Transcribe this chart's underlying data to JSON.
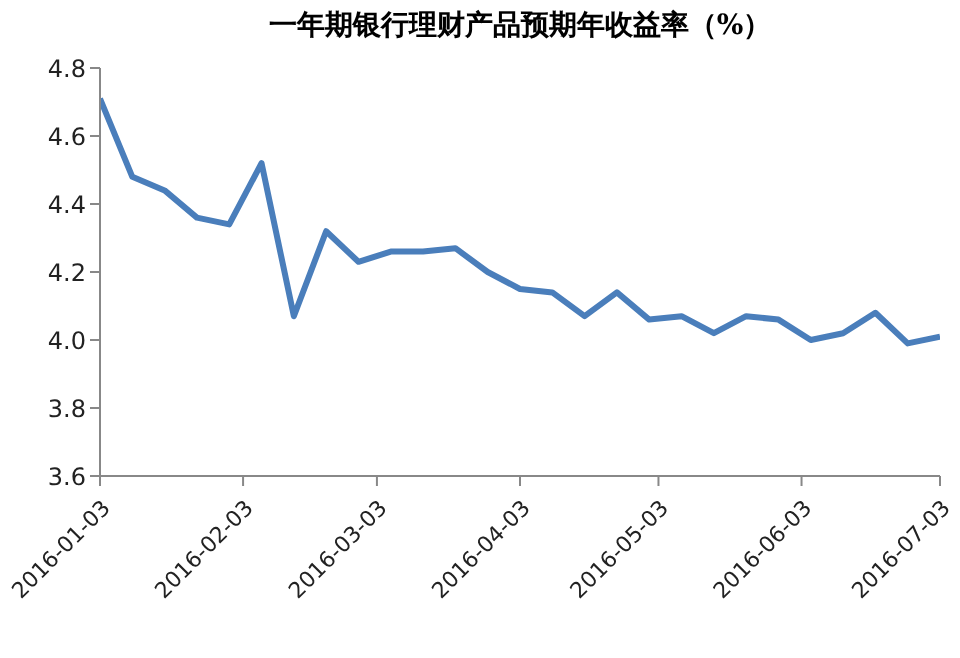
{
  "chart_data": {
    "type": "line",
    "title": "一年期银行理财产品预期年收益率（%）",
    "x": [
      "2016-01-03",
      "2016-01-10",
      "2016-01-17",
      "2016-01-24",
      "2016-01-31",
      "2016-02-07",
      "2016-02-14",
      "2016-02-21",
      "2016-02-28",
      "2016-03-06",
      "2016-03-13",
      "2016-03-20",
      "2016-03-27",
      "2016-04-03",
      "2016-04-10",
      "2016-04-17",
      "2016-04-24",
      "2016-05-01",
      "2016-05-08",
      "2016-05-15",
      "2016-05-22",
      "2016-05-29",
      "2016-06-05",
      "2016-06-12",
      "2016-06-19",
      "2016-06-26",
      "2016-07-03"
    ],
    "series": [
      {
        "color": "#4a7ebb",
        "values": [
          4.71,
          4.48,
          4.44,
          4.36,
          4.34,
          4.52,
          4.07,
          4.32,
          4.23,
          4.26,
          4.26,
          4.27,
          4.2,
          4.15,
          4.14,
          4.07,
          4.14,
          4.06,
          4.07,
          4.02,
          4.07,
          4.06,
          4.0,
          4.02,
          4.08,
          3.99,
          4.01
        ]
      }
    ],
    "ylim": [
      3.6,
      4.8
    ],
    "yticks": [
      {
        "value": 3.6,
        "label": "3.6"
      },
      {
        "value": 3.8,
        "label": "3.8"
      },
      {
        "value": 4.0,
        "label": "4.0"
      },
      {
        "value": 4.2,
        "label": "4.2"
      },
      {
        "value": 4.4,
        "label": "4.4"
      },
      {
        "value": 4.6,
        "label": "4.6"
      },
      {
        "value": 4.8,
        "label": "4.8"
      }
    ],
    "xlim": [
      "2016-01-03",
      "2016-07-03"
    ],
    "xticks": [
      {
        "value": "2016-01-03",
        "label": "2016-01-03"
      },
      {
        "value": "2016-02-03",
        "label": "2016-02-03"
      },
      {
        "value": "2016-03-03",
        "label": "2016-03-03"
      },
      {
        "value": "2016-04-03",
        "label": "2016-04-03"
      },
      {
        "value": "2016-05-03",
        "label": "2016-05-03"
      },
      {
        "value": "2016-06-03",
        "label": "2016-06-03"
      },
      {
        "value": "2016-07-03",
        "label": "2016-07-03"
      }
    ],
    "grid": false,
    "legend": false,
    "marker": "none",
    "line_style": "solid"
  }
}
